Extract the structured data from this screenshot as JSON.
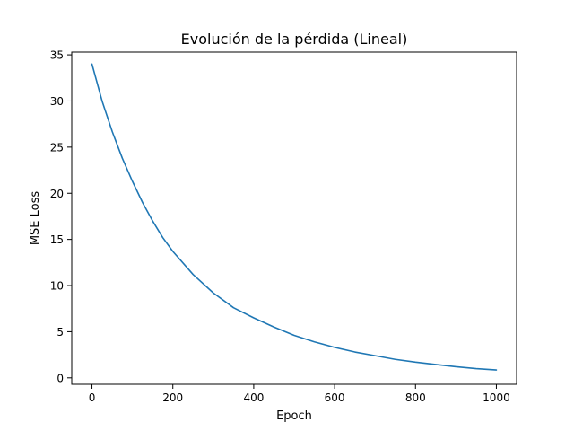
{
  "chart_data": {
    "type": "line",
    "title": "Evolución de la pérdida (Lineal)",
    "xlabel": "Epoch",
    "ylabel": "MSE Loss",
    "xlim": [
      -50,
      1050
    ],
    "ylim": [
      -0.7,
      35.3
    ],
    "xticks": [
      0,
      200,
      400,
      600,
      800,
      1000
    ],
    "yticks": [
      0,
      5,
      10,
      15,
      20,
      25,
      30,
      35
    ],
    "grid": false,
    "series": [
      {
        "color": "#1f77b4",
        "x": [
          0,
          25,
          50,
          75,
          100,
          125,
          150,
          175,
          200,
          250,
          300,
          350,
          400,
          450,
          500,
          550,
          600,
          650,
          700,
          750,
          800,
          850,
          900,
          950,
          1000
        ],
        "y": [
          34.0,
          30.0,
          26.7,
          23.8,
          21.3,
          19.0,
          17.0,
          15.2,
          13.7,
          11.2,
          9.2,
          7.6,
          6.5,
          5.5,
          4.6,
          3.9,
          3.3,
          2.8,
          2.4,
          2.0,
          1.7,
          1.45,
          1.2,
          1.0,
          0.85
        ]
      }
    ]
  }
}
